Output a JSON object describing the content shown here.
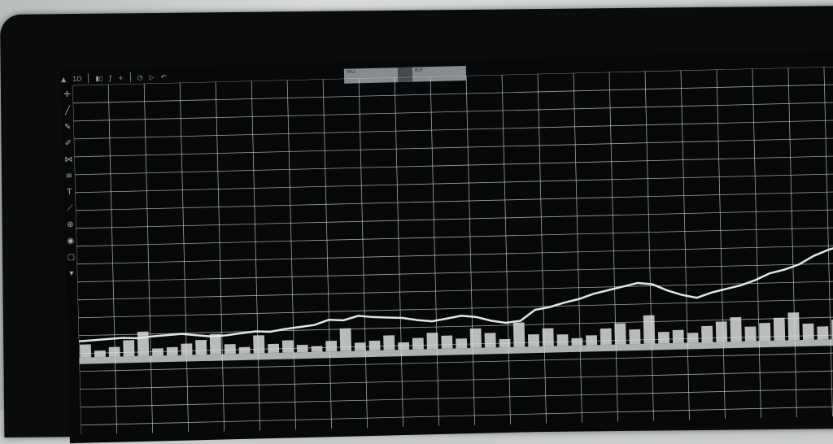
{
  "toolbar": {
    "interval_label": "1D",
    "items": [
      "bars",
      "indicators",
      "compare",
      "alert",
      "replay"
    ]
  },
  "order_panel": {
    "sell_label": "SELL",
    "buy_label": "BUY"
  },
  "tools": [
    "crosshair-icon",
    "trend-line-icon",
    "brush-icon",
    "pen-icon",
    "pattern-icon",
    "fib-icon",
    "text-icon",
    "ruler-icon",
    "zoom-icon",
    "eye-icon",
    "lock-icon",
    "chevron-down-icon"
  ],
  "chart_data": {
    "type": "line",
    "series": [
      {
        "values": [
          385,
          384,
          383,
          382,
          383,
          381,
          380,
          379,
          381,
          383,
          382,
          380,
          378,
          379,
          376,
          374,
          372,
          366,
          367,
          362,
          364,
          365,
          366,
          369,
          371,
          368,
          365,
          367,
          372,
          375,
          373,
          360,
          357,
          352,
          348,
          342,
          338,
          334,
          330,
          332,
          340,
          346,
          350,
          344,
          340,
          336,
          330,
          322,
          318,
          312,
          302,
          295,
          290,
          288
        ]
      }
    ],
    "volume": [
      16,
      8,
      12,
      20,
      30,
      9,
      10,
      14,
      18,
      25,
      12,
      8,
      22,
      11,
      15,
      9,
      7,
      13,
      28,
      10,
      12,
      18,
      9,
      14,
      20,
      16,
      12,
      24,
      18,
      10,
      30,
      15,
      22,
      14,
      9,
      12,
      20,
      26,
      18,
      35,
      14,
      16,
      12,
      20,
      25,
      30,
      18,
      22,
      28,
      34,
      20,
      16,
      24,
      30
    ],
    "grid": true
  }
}
